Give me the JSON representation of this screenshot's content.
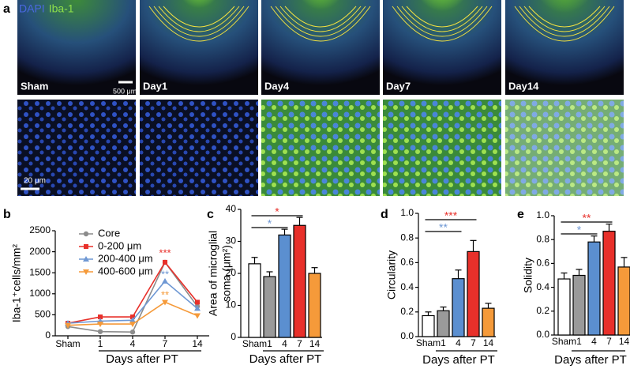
{
  "figure_a": {
    "label": "a",
    "stains": [
      {
        "name": "DAPI",
        "color": "#4a68e0"
      },
      {
        "name": "Iba-1",
        "color": "#8ee04a"
      }
    ],
    "panels": [
      "Sham",
      "Day1",
      "Day4",
      "Day7",
      "Day14"
    ],
    "scale_bars": [
      "500 μm",
      "20 μm"
    ]
  },
  "chart_data": [
    {
      "type": "line",
      "label": "b",
      "categories": [
        "Sham",
        "1",
        "4",
        "7",
        "14"
      ],
      "series": [
        {
          "name": "Core",
          "color": "#8c8c8c",
          "marker": "circle",
          "values": [
            220,
            100,
            90,
            1750,
            700
          ]
        },
        {
          "name": "0-200 μm",
          "color": "#e8302a",
          "marker": "square",
          "values": [
            300,
            450,
            450,
            1750,
            800
          ]
        },
        {
          "name": "200-400 μm",
          "color": "#6f98d4",
          "marker": "triangle",
          "values": [
            300,
            350,
            370,
            1300,
            650
          ]
        },
        {
          "name": "400-600 μm",
          "color": "#f59a3a",
          "marker": "triangle-down",
          "values": [
            250,
            280,
            280,
            800,
            480
          ]
        }
      ],
      "ylim": [
        0,
        2500
      ],
      "yticks": [
        0,
        500,
        1000,
        1500,
        2000,
        2500
      ],
      "ylabel": "Iba-1⁺cells/mm²",
      "xlabel": "Days after PT",
      "legend": "upper-left",
      "annotations": [
        {
          "text": "***",
          "color": "#e8302a",
          "category": "7",
          "y": 1950
        },
        {
          "text": "**",
          "color": "#6f98d4",
          "category": "7",
          "y": 1450
        },
        {
          "text": "**",
          "color": "#f59a3a",
          "category": "7",
          "y": 960
        }
      ]
    },
    {
      "type": "bar",
      "label": "c",
      "categories": [
        "Sham",
        "1",
        "4",
        "7",
        "14"
      ],
      "values": [
        23,
        19,
        32,
        35,
        20
      ],
      "errors": [
        2,
        1.5,
        1.8,
        2.5,
        1.8
      ],
      "colors": [
        "#ffffff",
        "#9a9a9a",
        "#5b8fd0",
        "#e8302a",
        "#f59a3a"
      ],
      "ylim": [
        0,
        40
      ],
      "yticks": [
        0,
        10,
        20,
        30,
        40
      ],
      "ylabel": [
        "Area of microglial",
        "soma (μm²)"
      ],
      "xlabel": "Days after PT",
      "brackets": [
        {
          "from": "Sham",
          "to": "7",
          "text": "*",
          "color": "#e8302a"
        },
        {
          "from": "Sham",
          "to": "4",
          "text": "*",
          "color": "#6f98d4"
        }
      ]
    },
    {
      "type": "bar",
      "label": "d",
      "categories": [
        "Sham",
        "1",
        "4",
        "7",
        "14"
      ],
      "values": [
        0.17,
        0.21,
        0.47,
        0.69,
        0.23
      ],
      "errors": [
        0.03,
        0.03,
        0.07,
        0.09,
        0.04
      ],
      "colors": [
        "#ffffff",
        "#9a9a9a",
        "#5b8fd0",
        "#e8302a",
        "#f59a3a"
      ],
      "ylim": [
        0,
        1.0
      ],
      "yticks": [
        {
          "value": 0,
          "label": "0.0"
        },
        0.2,
        0.4,
        0.6,
        0.8,
        {
          "value": 1.0,
          "label": "1.0"
        }
      ],
      "ylabel": "Circularity",
      "xlabel": "Days after PT",
      "brackets": [
        {
          "from": "Sham",
          "to": "7",
          "text": "***",
          "color": "#e8302a"
        },
        {
          "from": "Sham",
          "to": "4",
          "text": "**",
          "color": "#6f98d4"
        }
      ]
    },
    {
      "type": "bar",
      "label": "e",
      "categories": [
        "Sham",
        "1",
        "4",
        "7",
        "14"
      ],
      "values": [
        0.47,
        0.5,
        0.78,
        0.87,
        0.57
      ],
      "errors": [
        0.05,
        0.05,
        0.05,
        0.06,
        0.08
      ],
      "colors": [
        "#ffffff",
        "#9a9a9a",
        "#5b8fd0",
        "#e8302a",
        "#f59a3a"
      ],
      "ylim": [
        0,
        1.0
      ],
      "yticks": [
        {
          "value": 0,
          "label": "0.0"
        },
        0.2,
        0.4,
        0.6,
        0.8,
        {
          "value": 1.0,
          "label": "1.0"
        }
      ],
      "ylabel": "Solidity",
      "xlabel": "Days after PT",
      "brackets": [
        {
          "from": "Sham",
          "to": "7",
          "text": "**",
          "color": "#e8302a"
        },
        {
          "from": "Sham",
          "to": "4",
          "text": "*",
          "color": "#6f98d4"
        }
      ]
    }
  ]
}
